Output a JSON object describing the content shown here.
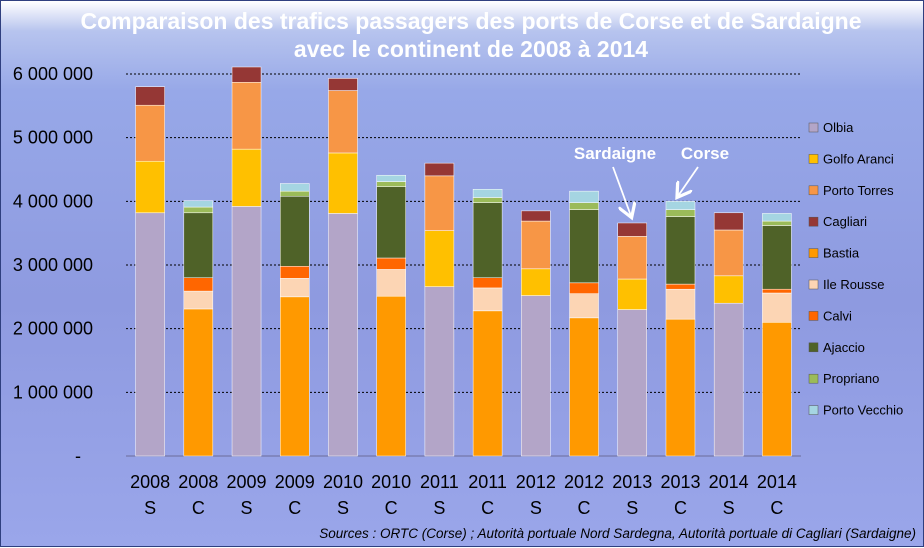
{
  "chart_data": {
    "type": "bar",
    "stacked": true,
    "title_lines": [
      "Comparaison  des trafics passagers des ports de Corse et de Sardaigne",
      "avec le continent de 2008 à 2014"
    ],
    "categories": [
      {
        "year": "2008",
        "code": "S"
      },
      {
        "year": "2008",
        "code": "C"
      },
      {
        "year": "2009",
        "code": "S"
      },
      {
        "year": "2009",
        "code": "C"
      },
      {
        "year": "2010",
        "code": "S"
      },
      {
        "year": "2010",
        "code": "C"
      },
      {
        "year": "2011",
        "code": "S"
      },
      {
        "year": "2011",
        "code": "C"
      },
      {
        "year": "2012",
        "code": "S"
      },
      {
        "year": "2012",
        "code": "C"
      },
      {
        "year": "2013",
        "code": "S"
      },
      {
        "year": "2013",
        "code": "C"
      },
      {
        "year": "2014",
        "code": "S"
      },
      {
        "year": "2014",
        "code": "C"
      }
    ],
    "ylim": [
      0,
      6000000
    ],
    "y_ticks": [
      0,
      1000000,
      2000000,
      3000000,
      4000000,
      5000000,
      6000000
    ],
    "y_tick_labels": [
      "-",
      "1 000 000",
      "2 000 000",
      "3 000 000",
      "4 000 000",
      "5 000 000",
      "6 000 000"
    ],
    "grid": true,
    "legend_position": "right",
    "series": [
      {
        "name": "Olbia",
        "color": "#b3a5c8",
        "values": [
          3820000,
          0,
          3920000,
          0,
          3810000,
          0,
          2660000,
          0,
          2520000,
          0,
          2300000,
          0,
          2400000,
          0
        ]
      },
      {
        "name": "Golfo Aranci",
        "color": "#ffc000",
        "values": [
          810000,
          0,
          900000,
          0,
          950000,
          0,
          880000,
          0,
          420000,
          0,
          480000,
          0,
          430000,
          0
        ]
      },
      {
        "name": "Porto Torres",
        "color": "#f79646",
        "values": [
          880000,
          0,
          1050000,
          0,
          980000,
          0,
          860000,
          0,
          750000,
          0,
          670000,
          0,
          720000,
          0
        ]
      },
      {
        "name": "Cagliari",
        "color": "#953735",
        "values": [
          290000,
          0,
          240000,
          0,
          190000,
          0,
          200000,
          0,
          160000,
          0,
          210000,
          0,
          270000,
          0
        ]
      },
      {
        "name": "Bastia",
        "color": "#ff9900",
        "values": [
          0,
          2310000,
          0,
          2500000,
          0,
          2510000,
          0,
          2280000,
          0,
          2170000,
          0,
          2150000,
          0,
          2100000
        ]
      },
      {
        "name": "Ile Rousse",
        "color": "#fcd5b4",
        "values": [
          0,
          280000,
          0,
          290000,
          0,
          420000,
          0,
          360000,
          0,
          380000,
          0,
          470000,
          0,
          460000
        ]
      },
      {
        "name": "Calvi",
        "color": "#ff6600",
        "values": [
          0,
          210000,
          0,
          190000,
          0,
          180000,
          0,
          160000,
          0,
          170000,
          0,
          80000,
          0,
          60000
        ]
      },
      {
        "name": "Ajaccio",
        "color": "#4f6228",
        "values": [
          0,
          1020000,
          0,
          1100000,
          0,
          1120000,
          0,
          1180000,
          0,
          1150000,
          0,
          1060000,
          0,
          1000000
        ]
      },
      {
        "name": "Propriano",
        "color": "#9bbb59",
        "values": [
          0,
          90000,
          0,
          80000,
          0,
          80000,
          0,
          80000,
          0,
          110000,
          0,
          110000,
          0,
          70000
        ]
      },
      {
        "name": "Porto Vecchio",
        "color": "#a5d5e2",
        "values": [
          0,
          100000,
          0,
          120000,
          0,
          100000,
          0,
          130000,
          0,
          180000,
          0,
          130000,
          0,
          120000
        ]
      }
    ],
    "annotations": [
      {
        "text": "Sardaigne",
        "category_index": 10
      },
      {
        "text": "Corse",
        "category_index": 11
      }
    ],
    "source_note": "Sources : ORTC (Corse) ; Autorità portuale Nord Sardegna, Autorità portuale di Cagliari (Sardaigne)"
  }
}
